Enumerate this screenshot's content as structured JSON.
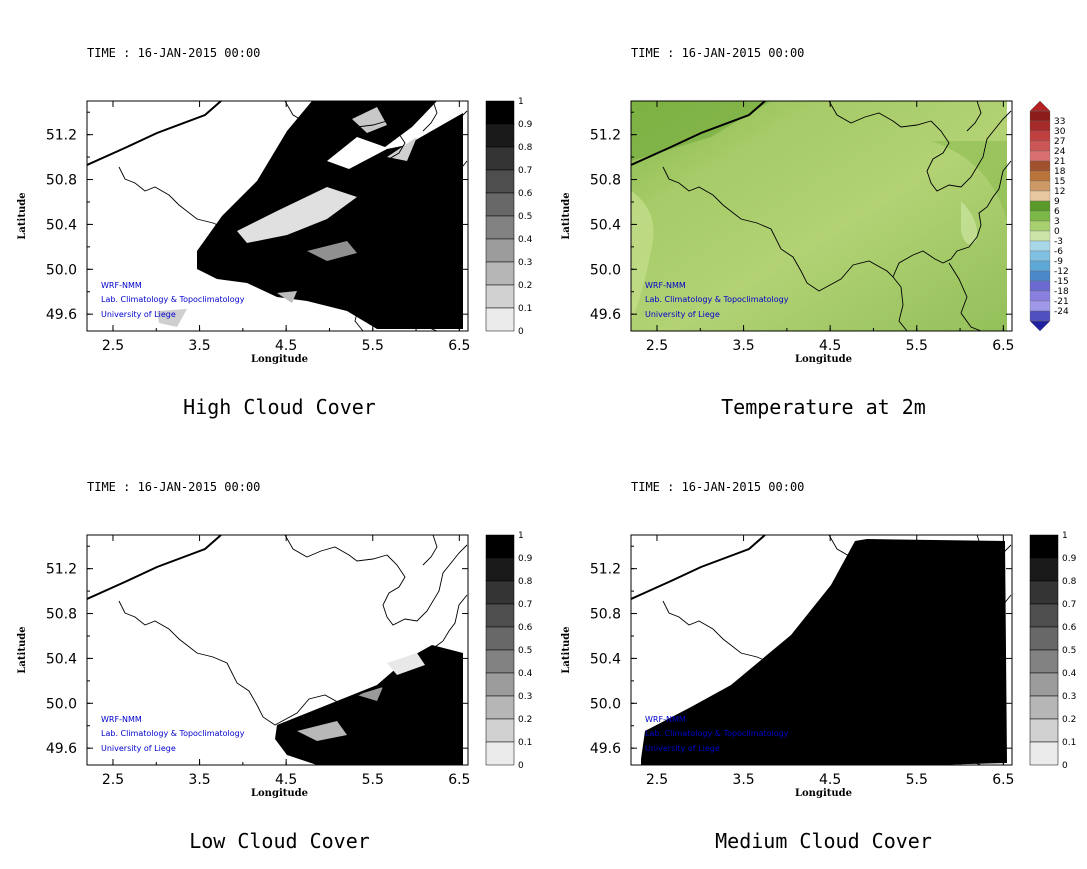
{
  "panels": [
    {
      "id": "high-cloud",
      "time_label": "TIME : 16-JAN-2015 00:00",
      "title": "High Cloud Cover",
      "xlabel": "Longitude",
      "ylabel": "Latitude",
      "x_ticks": [
        "2.5",
        "3.5",
        "4.5",
        "5.5",
        "6.5"
      ],
      "y_ticks": [
        "51.2",
        "50.8",
        "50.4",
        "50.0",
        "49.6"
      ],
      "colorbar": {
        "type": "gray",
        "labels": [
          "1",
          "0.9",
          "0.8",
          "0.7",
          "0.6",
          "0.5",
          "0.4",
          "0.3",
          "0.2",
          "0.1",
          "0"
        ]
      },
      "credits": [
        "WRF-NMM",
        "Lab. Climatology & Topoclimatology",
        "University of Liege"
      ]
    },
    {
      "id": "temperature",
      "time_label": "TIME : 16-JAN-2015 00:00",
      "title": "Temperature at 2m",
      "xlabel": "Longitude",
      "ylabel": "Latitude",
      "x_ticks": [
        "2.5",
        "3.5",
        "4.5",
        "5.5",
        "6.5"
      ],
      "y_ticks": [
        "51.2",
        "50.8",
        "50.4",
        "50.0",
        "49.6"
      ],
      "colorbar": {
        "type": "temperature",
        "labels": [
          "33",
          "30",
          "27",
          "24",
          "21",
          "18",
          "15",
          "12",
          "9",
          "6",
          "3",
          "0",
          "-3",
          "-6",
          "-9",
          "-12",
          "-15",
          "-18",
          "-21",
          "-24"
        ]
      },
      "credits": [
        "WRF-NMM",
        "Lab. Climatology & Topoclimatology",
        "University of Liege"
      ]
    },
    {
      "id": "low-cloud",
      "time_label": "TIME : 16-JAN-2015 00:00",
      "title": "Low Cloud Cover",
      "xlabel": "Longitude",
      "ylabel": "Latitude",
      "x_ticks": [
        "2.5",
        "3.5",
        "4.5",
        "5.5",
        "6.5"
      ],
      "y_ticks": [
        "51.2",
        "50.8",
        "50.4",
        "50.0",
        "49.6"
      ],
      "colorbar": {
        "type": "gray",
        "labels": [
          "1",
          "0.9",
          "0.8",
          "0.7",
          "0.6",
          "0.5",
          "0.4",
          "0.3",
          "0.2",
          "0.1",
          "0"
        ]
      },
      "credits": [
        "WRF-NMM",
        "Lab. Climatology & Topoclimatology",
        "University of Liege"
      ]
    },
    {
      "id": "medium-cloud",
      "time_label": "TIME : 16-JAN-2015 00:00",
      "title": "Medium Cloud Cover",
      "xlabel": "Longitude",
      "ylabel": "Latitude",
      "x_ticks": [
        "2.5",
        "3.5",
        "4.5",
        "5.5",
        "6.5"
      ],
      "y_ticks": [
        "51.2",
        "50.8",
        "50.4",
        "50.0",
        "49.6"
      ],
      "colorbar": {
        "type": "gray",
        "labels": [
          "1",
          "0.9",
          "0.8",
          "0.7",
          "0.6",
          "0.5",
          "0.4",
          "0.3",
          "0.2",
          "0.1",
          "0"
        ]
      },
      "credits": [
        "WRF-NMM",
        "Lab. Climatology & Topoclimatology",
        "University of Liege"
      ]
    }
  ],
  "colors": {
    "temp_fill": "#a8cc6a",
    "temp_fill_light": "#c4de8c",
    "temp_fill_dark": "#7fb046",
    "credit_text": "#0000cc"
  }
}
